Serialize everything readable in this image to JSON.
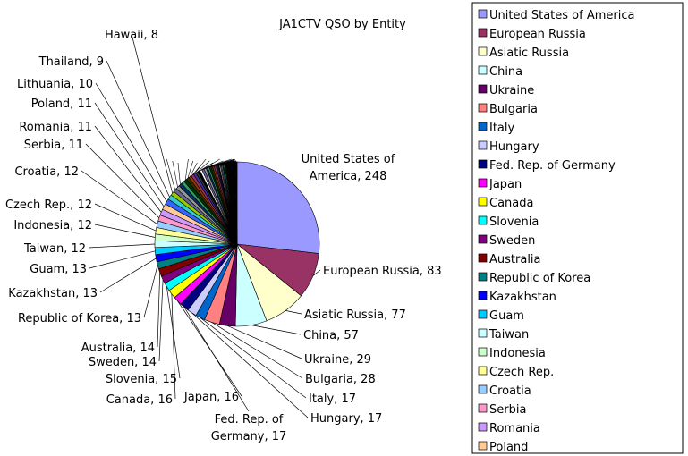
{
  "chart_data": {
    "type": "pie",
    "title": "JA1CTV QSO by Entity",
    "legend_position": "right",
    "slices": [
      {
        "label": "United States of America",
        "value": 248,
        "color": "#9999ff"
      },
      {
        "label": "European Russia",
        "value": 83,
        "color": "#993366"
      },
      {
        "label": "Asiatic Russia",
        "value": 77,
        "color": "#ffffcc"
      },
      {
        "label": "China",
        "value": 57,
        "color": "#ccffff"
      },
      {
        "label": "Ukraine",
        "value": 29,
        "color": "#660066"
      },
      {
        "label": "Bulgaria",
        "value": 28,
        "color": "#ff8080"
      },
      {
        "label": "Italy",
        "value": 17,
        "color": "#0066cc"
      },
      {
        "label": "Hungary",
        "value": 17,
        "color": "#ccccff"
      },
      {
        "label": "Fed. Rep. of Germany",
        "value": 17,
        "color": "#000080"
      },
      {
        "label": "Japan",
        "value": 16,
        "color": "#ff00ff"
      },
      {
        "label": "Canada",
        "value": 16,
        "color": "#ffff00"
      },
      {
        "label": "Slovenia",
        "value": 15,
        "color": "#00ffff"
      },
      {
        "label": "Sweden",
        "value": 14,
        "color": "#800080"
      },
      {
        "label": "Australia",
        "value": 14,
        "color": "#800000"
      },
      {
        "label": "Republic of Korea",
        "value": 13,
        "color": "#008080"
      },
      {
        "label": "Kazakhstan",
        "value": 13,
        "color": "#0000ff"
      },
      {
        "label": "Guam",
        "value": 13,
        "color": "#00ccff"
      },
      {
        "label": "Taiwan",
        "value": 12,
        "color": "#ccffff"
      },
      {
        "label": "Indonesia",
        "value": 12,
        "color": "#ccffcc"
      },
      {
        "label": "Czech Rep.",
        "value": 12,
        "color": "#ffff99"
      },
      {
        "label": "Croatia",
        "value": 12,
        "color": "#99ccff"
      },
      {
        "label": "Serbia",
        "value": 11,
        "color": "#ff99cc"
      },
      {
        "label": "Romania",
        "value": 11,
        "color": "#cc99ff"
      },
      {
        "label": "Poland",
        "value": 11,
        "color": "#ffcc99"
      },
      {
        "label": "Lithuania",
        "value": 10,
        "color": "#3366ff"
      },
      {
        "label": "Thailand",
        "value": 9,
        "color": "#33cccc"
      },
      {
        "label": "Hawaii",
        "value": 8,
        "color": "#99cc00"
      }
    ],
    "labeled_slices": [
      "United States of America, 248",
      "European Russia, 83",
      "Asiatic Russia, 77",
      "China, 57",
      "Ukraine, 29",
      "Bulgaria, 28",
      "Italy, 17",
      "Hungary, 17",
      "Fed. Rep. of Germany, 17",
      "Japan, 16",
      "Canada, 16",
      "Slovenia, 15",
      "Sweden, 14",
      "Australia, 14",
      "Republic of Korea, 13",
      "Kazakhstan, 13",
      "Guam, 13",
      "Taiwan, 12",
      "Indonesia, 12",
      "Czech Rep., 12",
      "Croatia, 12",
      "Serbia, 11",
      "Romania, 11",
      "Poland, 11",
      "Lithuania, 10",
      "Thailand, 9",
      "Hawaii, 8"
    ],
    "legend_entries": [
      "United States of America",
      "European Russia",
      "Asiatic Russia",
      "China",
      "Ukraine",
      "Bulgaria",
      "Italy",
      "Hungary",
      "Fed. Rep. of Germany",
      "Japan",
      "Canada",
      "Slovenia",
      "Sweden",
      "Australia",
      "Republic of Korea",
      "Kazakhstan",
      "Guam",
      "Taiwan",
      "Indonesia",
      "Czech Rep.",
      "Croatia",
      "Serbia",
      "Romania",
      "Poland"
    ],
    "unlabeled_small_slices": [
      7,
      7,
      6,
      6,
      6,
      5,
      5,
      5,
      5,
      4,
      4,
      4,
      4,
      4,
      3,
      3,
      3,
      3,
      3,
      3,
      2,
      2,
      2,
      2,
      2,
      2,
      2,
      2,
      2,
      1,
      1,
      1,
      1,
      1,
      1,
      1,
      1,
      1,
      1,
      1,
      1,
      1,
      1,
      1,
      1,
      1,
      1,
      1,
      1,
      1
    ],
    "small_slice_colors": [
      "#666699",
      "#969696",
      "#003366",
      "#339966",
      "#003300",
      "#333300",
      "#993300",
      "#993366",
      "#333399",
      "#333333",
      "#000000",
      "#ffffff"
    ]
  }
}
